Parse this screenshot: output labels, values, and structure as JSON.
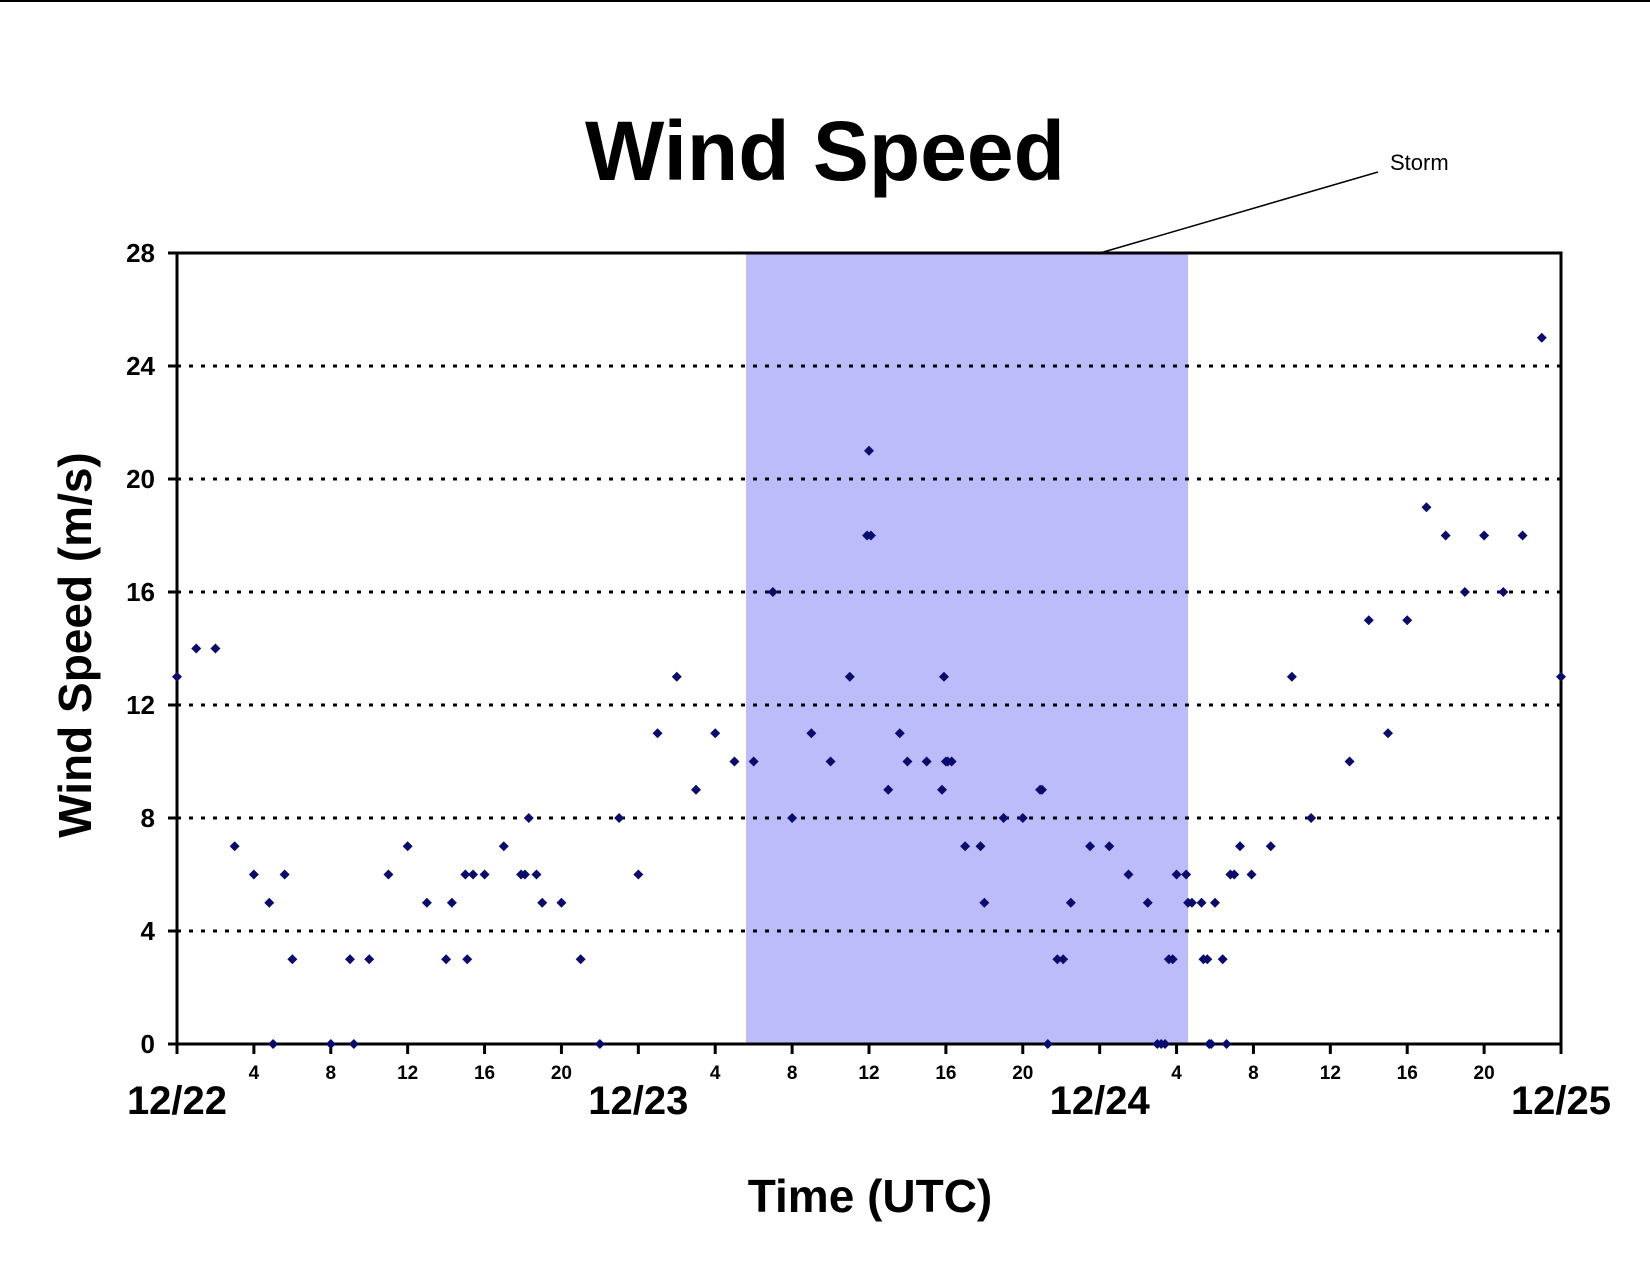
{
  "chart_data": {
    "type": "scatter",
    "title": "Wind Speed",
    "xlabel": "Time (UTC)",
    "ylabel": "Wind Speed (m/s)",
    "ylim": [
      0,
      28
    ],
    "yticks": [
      "0",
      "4",
      "8",
      "12",
      "16",
      "20",
      "24",
      "28"
    ],
    "xlim_hours": [
      0,
      72
    ],
    "x_unit": "hours since 12/22 00 UTC",
    "date_labels": [
      {
        "hour": 0,
        "label": "12/22"
      },
      {
        "hour": 24,
        "label": "12/23"
      },
      {
        "hour": 48,
        "label": "12/24"
      },
      {
        "hour": 72,
        "label": "12/25"
      }
    ],
    "hour_labels": [
      {
        "hour": 4,
        "label": "4"
      },
      {
        "hour": 8,
        "label": "8"
      },
      {
        "hour": 12,
        "label": "12"
      },
      {
        "hour": 16,
        "label": "16"
      },
      {
        "hour": 20,
        "label": "20"
      },
      {
        "hour": 28,
        "label": "4"
      },
      {
        "hour": 32,
        "label": "8"
      },
      {
        "hour": 36,
        "label": "12"
      },
      {
        "hour": 40,
        "label": "16"
      },
      {
        "hour": 44,
        "label": "20"
      },
      {
        "hour": 52,
        "label": "4"
      },
      {
        "hour": 56,
        "label": "8"
      },
      {
        "hour": 60,
        "label": "12"
      },
      {
        "hour": 64,
        "label": "16"
      },
      {
        "hour": 68,
        "label": "20"
      }
    ],
    "grid": "horizontal dotted",
    "shaded_region": {
      "label": "Storm",
      "x_start": 29.6,
      "x_end": 52.6,
      "color": "#bcbcfb"
    },
    "point_color": "#0b0b6e",
    "points": [
      [
        0,
        13
      ],
      [
        1,
        14
      ],
      [
        2,
        14
      ],
      [
        3,
        7
      ],
      [
        4,
        6
      ],
      [
        4.8,
        5
      ],
      [
        5,
        0
      ],
      [
        5.6,
        6
      ],
      [
        6,
        3
      ],
      [
        8,
        0
      ],
      [
        9,
        3
      ],
      [
        9.2,
        0
      ],
      [
        10,
        3
      ],
      [
        11,
        6
      ],
      [
        12,
        7
      ],
      [
        13,
        5
      ],
      [
        14,
        3
      ],
      [
        14.3,
        5
      ],
      [
        15,
        6
      ],
      [
        15.1,
        3
      ],
      [
        15.4,
        6
      ],
      [
        16,
        6
      ],
      [
        17,
        7
      ],
      [
        17.9,
        6
      ],
      [
        18.1,
        6
      ],
      [
        18.3,
        8
      ],
      [
        18.7,
        6
      ],
      [
        19,
        5
      ],
      [
        20,
        5
      ],
      [
        21,
        3
      ],
      [
        22,
        0
      ],
      [
        23,
        8
      ],
      [
        24,
        6
      ],
      [
        25,
        11
      ],
      [
        26,
        13
      ],
      [
        27,
        9
      ],
      [
        28,
        11
      ],
      [
        29,
        10
      ],
      [
        30,
        10
      ],
      [
        31,
        16
      ],
      [
        32,
        8
      ],
      [
        33,
        11
      ],
      [
        34,
        10
      ],
      [
        35,
        13
      ],
      [
        35.9,
        18
      ],
      [
        36,
        21
      ],
      [
        36.1,
        18
      ],
      [
        37,
        9
      ],
      [
        37.6,
        11
      ],
      [
        38,
        10
      ],
      [
        39,
        10
      ],
      [
        39.8,
        9
      ],
      [
        39.9,
        13
      ],
      [
        40,
        10
      ],
      [
        40.1,
        10
      ],
      [
        40.3,
        10
      ],
      [
        41,
        7
      ],
      [
        41.8,
        7
      ],
      [
        42,
        5
      ],
      [
        43,
        8
      ],
      [
        44,
        8
      ],
      [
        44.9,
        9
      ],
      [
        45,
        9
      ],
      [
        45.3,
        0
      ],
      [
        45.8,
        3
      ],
      [
        46.1,
        3
      ],
      [
        46.5,
        5
      ],
      [
        47.5,
        7
      ],
      [
        48.5,
        7
      ],
      [
        49.5,
        6
      ],
      [
        50.5,
        5
      ],
      [
        51,
        0
      ],
      [
        51.2,
        0
      ],
      [
        51.4,
        0
      ],
      [
        51.6,
        3
      ],
      [
        51.8,
        3
      ],
      [
        52,
        6
      ],
      [
        52.5,
        6
      ],
      [
        52.6,
        5
      ],
      [
        52.8,
        5
      ],
      [
        53.3,
        5
      ],
      [
        53.4,
        3
      ],
      [
        53.6,
        3
      ],
      [
        53.7,
        0
      ],
      [
        53.8,
        0
      ],
      [
        54,
        5
      ],
      [
        54.4,
        3
      ],
      [
        54.6,
        0
      ],
      [
        54.8,
        6
      ],
      [
        55,
        6
      ],
      [
        55.3,
        7
      ],
      [
        55.9,
        6
      ],
      [
        56.9,
        7
      ],
      [
        58,
        13
      ],
      [
        59,
        8
      ],
      [
        61,
        10
      ],
      [
        62,
        15
      ],
      [
        63,
        11
      ],
      [
        64,
        15
      ],
      [
        65,
        19
      ],
      [
        66,
        18
      ],
      [
        67,
        16
      ],
      [
        68,
        18
      ],
      [
        69,
        16
      ],
      [
        70,
        18
      ],
      [
        71,
        25
      ],
      [
        72,
        13
      ]
    ]
  }
}
